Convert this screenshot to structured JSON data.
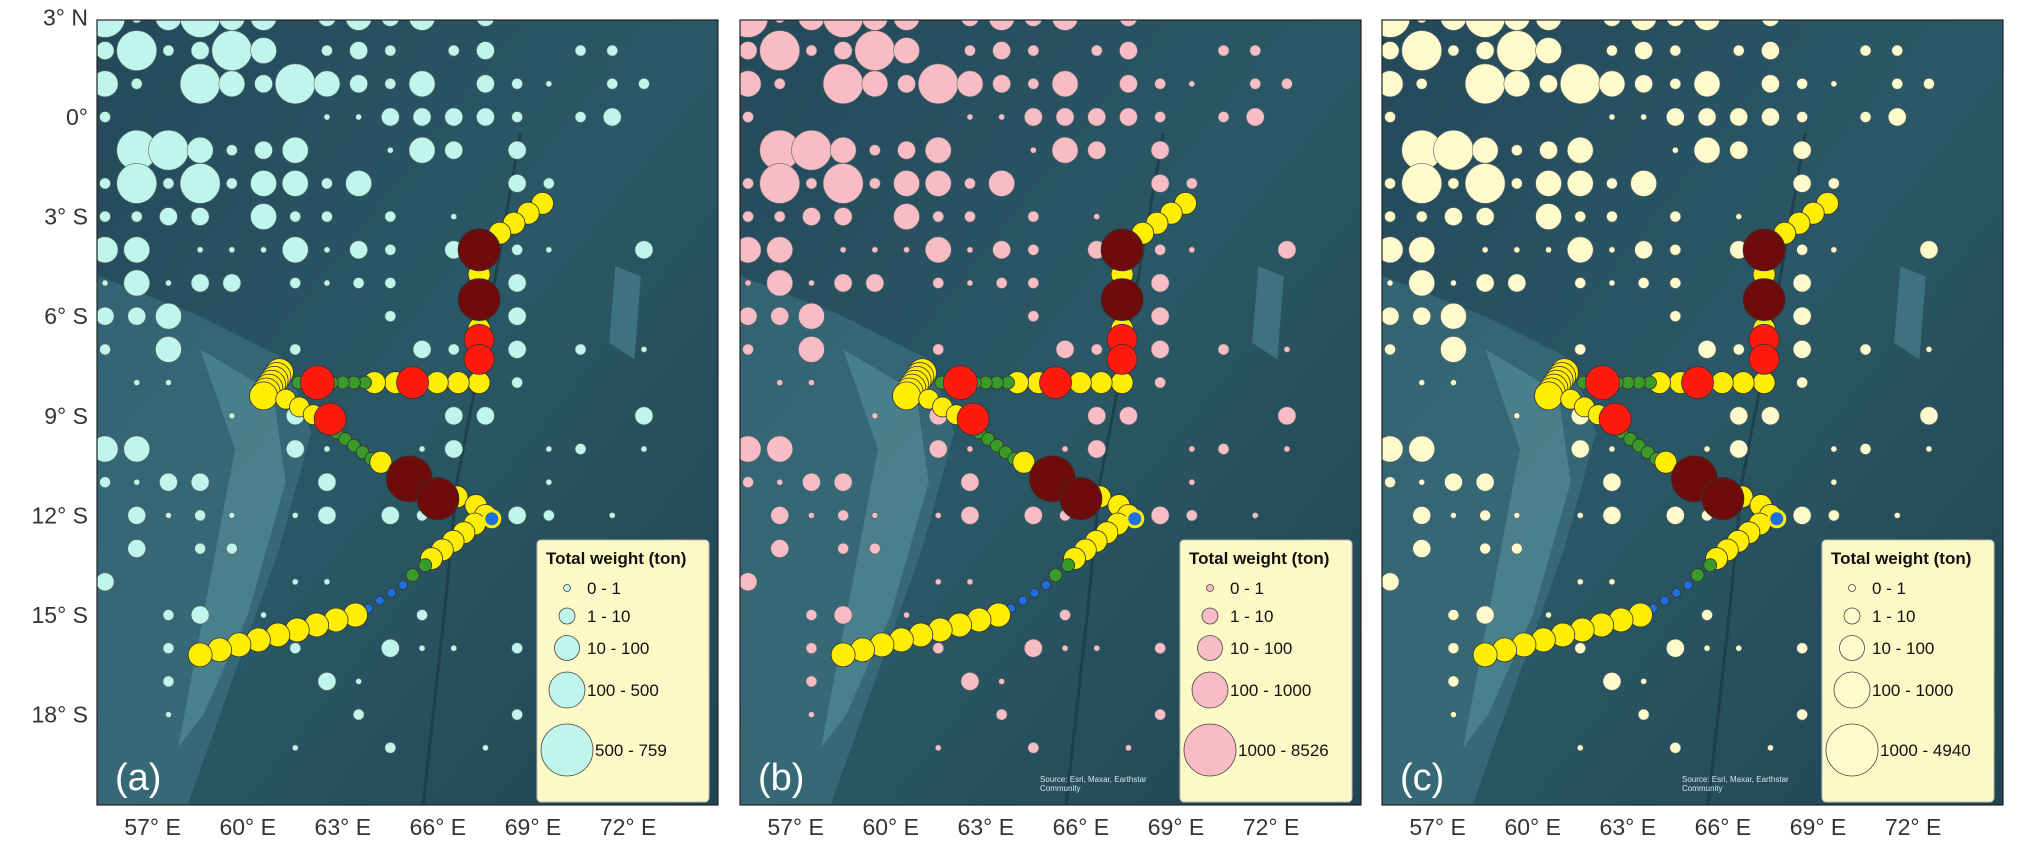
{
  "lat_ticks": [
    "3° N",
    "0°",
    "3° S",
    "6° S",
    "9° S",
    "12° S",
    "15° S",
    "18° S"
  ],
  "panels": [
    {
      "label": "(a)",
      "color": "#bff5ea",
      "lon_ticks": [
        "57° E",
        "60° E",
        "63° E",
        "66° E",
        "69° E",
        "72° E"
      ],
      "legend": {
        "title": "Total weight (ton)",
        "classes": [
          "0 - 1",
          "1 - 10",
          "10 - 100",
          "100 - 500",
          "500 - 759"
        ]
      }
    },
    {
      "label": "(b)",
      "color": "#f8bcc4",
      "lon_ticks": [
        "57° E",
        "60° E",
        "63° E",
        "66° E",
        "69° E",
        "72° E"
      ],
      "legend": {
        "title": "Total weight (ton)",
        "classes": [
          "0 - 1",
          "1 - 10",
          "10 - 100",
          "100 - 1000",
          "1000 - 8526"
        ]
      },
      "attribution": [
        "Source: Esri, Maxar, Earthstar",
        "Community"
      ]
    },
    {
      "label": "(c)",
      "color": "#fffacc",
      "lon_ticks": [
        "57° E",
        "60° E",
        "63° E",
        "66° E",
        "69° E",
        "72° E"
      ],
      "legend": {
        "title": "Total weight (ton)",
        "classes": [
          "0 - 1",
          "1 - 10",
          "10 - 100",
          "100 - 1000",
          "1000 - 4940"
        ]
      },
      "attribution": [
        "Source: Esri, Maxar, Earthstar",
        "Community"
      ]
    }
  ]
}
